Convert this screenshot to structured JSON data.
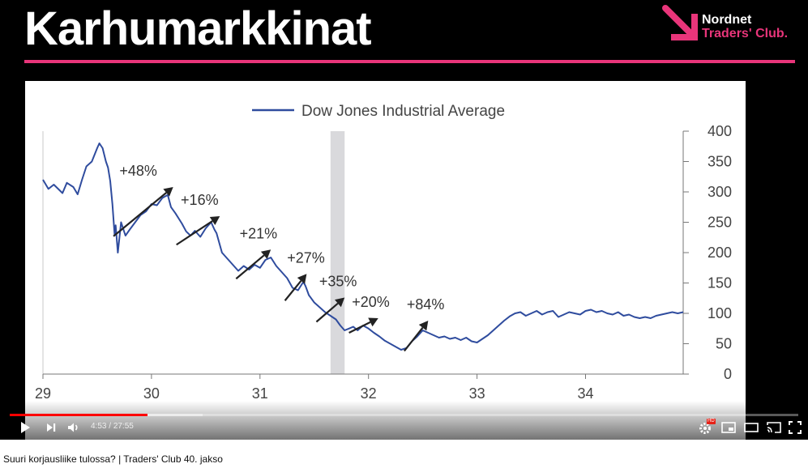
{
  "slide": {
    "title": "Karhumarkkinat",
    "logo_line1": "Nordnet",
    "logo_line2": "Traders' Club.",
    "accent": "#e8357a"
  },
  "chart_data": {
    "type": "line",
    "title": "",
    "legend": "Dow Jones Industrial Average",
    "legend_position": "top-center",
    "series_color": "#2f4c9e",
    "x_ticks": [
      "29",
      "30",
      "31",
      "32",
      "33",
      "34"
    ],
    "y_ticks": [
      "400",
      "350",
      "300",
      "250",
      "200",
      "150",
      "100",
      "50",
      "0"
    ],
    "ylim": [
      0,
      400
    ],
    "xlim": [
      29,
      34.9
    ],
    "y_axis_side": "right",
    "grid": false,
    "recession_band": [
      31.65,
      31.78
    ],
    "series": [
      {
        "values": [
          [
            29.0,
            320
          ],
          [
            29.05,
            305
          ],
          [
            29.1,
            312
          ],
          [
            29.18,
            298
          ],
          [
            29.22,
            315
          ],
          [
            29.28,
            308
          ],
          [
            29.32,
            296
          ],
          [
            29.36,
            320
          ],
          [
            29.4,
            342
          ],
          [
            29.45,
            350
          ],
          [
            29.5,
            372
          ],
          [
            29.52,
            380
          ],
          [
            29.55,
            372
          ],
          [
            29.58,
            350
          ],
          [
            29.6,
            340
          ],
          [
            29.62,
            318
          ],
          [
            29.64,
            280
          ],
          [
            29.66,
            230
          ],
          [
            29.67,
            245
          ],
          [
            29.69,
            200
          ],
          [
            29.72,
            250
          ],
          [
            29.76,
            228
          ],
          [
            29.8,
            238
          ],
          [
            29.85,
            250
          ],
          [
            29.9,
            262
          ],
          [
            29.95,
            268
          ],
          [
            30.0,
            280
          ],
          [
            30.05,
            278
          ],
          [
            30.1,
            290
          ],
          [
            30.15,
            295
          ],
          [
            30.18,
            275
          ],
          [
            30.22,
            265
          ],
          [
            30.28,
            248
          ],
          [
            30.32,
            235
          ],
          [
            30.36,
            228
          ],
          [
            30.4,
            236
          ],
          [
            30.45,
            226
          ],
          [
            30.5,
            240
          ],
          [
            30.55,
            250
          ],
          [
            30.58,
            238
          ],
          [
            30.6,
            232
          ],
          [
            30.65,
            200
          ],
          [
            30.7,
            190
          ],
          [
            30.75,
            180
          ],
          [
            30.8,
            170
          ],
          [
            30.85,
            178
          ],
          [
            30.9,
            172
          ],
          [
            30.95,
            180
          ],
          [
            31.0,
            175
          ],
          [
            31.05,
            188
          ],
          [
            31.1,
            192
          ],
          [
            31.15,
            178
          ],
          [
            31.2,
            168
          ],
          [
            31.25,
            158
          ],
          [
            31.3,
            142
          ],
          [
            31.35,
            138
          ],
          [
            31.4,
            152
          ],
          [
            31.42,
            145
          ],
          [
            31.45,
            130
          ],
          [
            31.5,
            118
          ],
          [
            31.55,
            110
          ],
          [
            31.6,
            102
          ],
          [
            31.65,
            96
          ],
          [
            31.7,
            90
          ],
          [
            31.74,
            80
          ],
          [
            31.78,
            72
          ],
          [
            31.82,
            75
          ],
          [
            31.86,
            78
          ],
          [
            31.9,
            72
          ],
          [
            31.95,
            80
          ],
          [
            32.0,
            75
          ],
          [
            32.05,
            68
          ],
          [
            32.1,
            62
          ],
          [
            32.15,
            55
          ],
          [
            32.2,
            50
          ],
          [
            32.25,
            45
          ],
          [
            32.3,
            40
          ],
          [
            32.35,
            43
          ],
          [
            32.4,
            54
          ],
          [
            32.45,
            62
          ],
          [
            32.5,
            72
          ],
          [
            32.55,
            68
          ],
          [
            32.6,
            64
          ],
          [
            32.65,
            60
          ],
          [
            32.7,
            62
          ],
          [
            32.75,
            58
          ],
          [
            32.8,
            60
          ],
          [
            32.85,
            56
          ],
          [
            32.9,
            60
          ],
          [
            32.95,
            54
          ],
          [
            33.0,
            52
          ],
          [
            33.05,
            58
          ],
          [
            33.1,
            64
          ],
          [
            33.15,
            72
          ],
          [
            33.2,
            80
          ],
          [
            33.25,
            88
          ],
          [
            33.3,
            95
          ],
          [
            33.35,
            100
          ],
          [
            33.4,
            102
          ],
          [
            33.45,
            96
          ],
          [
            33.5,
            100
          ],
          [
            33.55,
            104
          ],
          [
            33.6,
            98
          ],
          [
            33.65,
            102
          ],
          [
            33.7,
            104
          ],
          [
            33.75,
            94
          ],
          [
            33.8,
            98
          ],
          [
            33.85,
            102
          ],
          [
            33.9,
            100
          ],
          [
            33.95,
            98
          ],
          [
            34.0,
            104
          ],
          [
            34.05,
            106
          ],
          [
            34.1,
            102
          ],
          [
            34.15,
            104
          ],
          [
            34.2,
            100
          ],
          [
            34.25,
            98
          ],
          [
            34.3,
            102
          ],
          [
            34.35,
            96
          ],
          [
            34.4,
            98
          ],
          [
            34.45,
            94
          ],
          [
            34.5,
            92
          ],
          [
            34.55,
            94
          ],
          [
            34.6,
            92
          ],
          [
            34.65,
            96
          ],
          [
            34.7,
            98
          ],
          [
            34.75,
            100
          ],
          [
            34.8,
            102
          ],
          [
            34.85,
            100
          ],
          [
            34.9,
            102
          ]
        ]
      }
    ],
    "annotations": [
      {
        "label": "+48%",
        "x0": 29.65,
        "y0": 227,
        "x1": 30.2,
        "y1": 308
      },
      {
        "label": "+16%",
        "x0": 30.23,
        "y0": 213,
        "x1": 30.63,
        "y1": 260
      },
      {
        "label": "+21%",
        "x0": 30.78,
        "y0": 157,
        "x1": 31.1,
        "y1": 205
      },
      {
        "label": "+27%",
        "x0": 31.23,
        "y0": 121,
        "x1": 31.43,
        "y1": 165
      },
      {
        "label": "+35%",
        "x0": 31.52,
        "y0": 86,
        "x1": 31.78,
        "y1": 126
      },
      {
        "label": "+20%",
        "x0": 31.82,
        "y0": 68,
        "x1": 32.09,
        "y1": 92
      },
      {
        "label": "+84%",
        "x0": 32.33,
        "y0": 38,
        "x1": 32.55,
        "y1": 88
      }
    ]
  },
  "player": {
    "time_current": "4:53",
    "time_separator": "/",
    "time_total": "27:55",
    "progress_played_fraction": 0.175,
    "progress_buffered_fraction": 0.245,
    "hd_badge": "HD"
  },
  "page": {
    "video_title": "Suuri korjausliike tulossa? | Traders' Club 40. jakso"
  }
}
